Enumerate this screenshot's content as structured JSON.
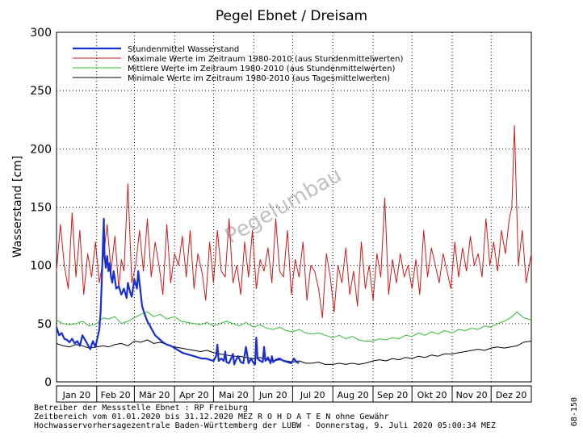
{
  "chart_data": {
    "type": "line",
    "title": "Pegel Ebnet / Dreisam",
    "ylabel": "Wasserstand [cm]",
    "ylim": [
      0,
      300
    ],
    "yticks": [
      "0",
      "50",
      "100",
      "150",
      "200",
      "250",
      "300"
    ],
    "x_range_days": [
      0,
      366
    ],
    "months": [
      {
        "label": "Jan 20",
        "start": 0,
        "end": 31
      },
      {
        "label": "Feb 20",
        "start": 31,
        "end": 60
      },
      {
        "label": "Mär 20",
        "start": 60,
        "end": 91
      },
      {
        "label": "Apr 20",
        "start": 91,
        "end": 121
      },
      {
        "label": "Mai 20",
        "start": 121,
        "end": 152
      },
      {
        "label": "Jun 20",
        "start": 152,
        "end": 182
      },
      {
        "label": "Jul 20",
        "start": 182,
        "end": 213
      },
      {
        "label": "Aug 20",
        "start": 213,
        "end": 244
      },
      {
        "label": "Sep 20",
        "start": 244,
        "end": 274
      },
      {
        "label": "Okt 20",
        "start": 274,
        "end": 305
      },
      {
        "label": "Nov 20",
        "start": 305,
        "end": 335
      },
      {
        "label": "Dez 20",
        "start": 335,
        "end": 366
      }
    ],
    "grid": true,
    "legend_position": "top-left",
    "series": [
      {
        "name": "Stundenmittel Wasserstand",
        "color": "#1a2fd0",
        "x": [
          0,
          2,
          4,
          6,
          8,
          10,
          12,
          14,
          16,
          18,
          20,
          22,
          24,
          26,
          28,
          30,
          32,
          33,
          34,
          35,
          36,
          36.5,
          37,
          38,
          39,
          40,
          41,
          42,
          43,
          44,
          45,
          46,
          48,
          50,
          52,
          54,
          55,
          56,
          57,
          58,
          60,
          62,
          63,
          64,
          65,
          66,
          68,
          70,
          72,
          74,
          76,
          78,
          80,
          82,
          85,
          88,
          91,
          94,
          97,
          100,
          103,
          106,
          109,
          112,
          115,
          118,
          121,
          123,
          124,
          125,
          127,
          129,
          130,
          131,
          133,
          136,
          137,
          138,
          140,
          142,
          144,
          146,
          148,
          150,
          152,
          153,
          154,
          155,
          157,
          159,
          160,
          161,
          163,
          165,
          166,
          167,
          169,
          172,
          175,
          178,
          181,
          183,
          185,
          187
        ],
        "y": [
          47,
          40,
          42,
          37,
          36,
          34,
          37,
          33,
          35,
          31,
          40,
          36,
          32,
          28,
          35,
          30,
          40,
          45,
          60,
          90,
          125,
          140,
          110,
          98,
          108,
          95,
          102,
          90,
          85,
          95,
          88,
          80,
          82,
          75,
          80,
          72,
          85,
          80,
          76,
          73,
          88,
          80,
          95,
          85,
          75,
          65,
          58,
          52,
          48,
          44,
          40,
          38,
          36,
          34,
          32,
          31,
          29,
          27,
          25,
          24,
          23,
          22,
          21,
          20,
          20,
          19,
          18,
          22,
          32,
          18,
          20,
          18,
          26,
          17,
          16,
          24,
          15,
          18,
          22,
          17,
          16,
          30,
          16,
          20,
          16,
          15,
          38,
          20,
          18,
          17,
          30,
          18,
          21,
          16,
          22,
          17,
          19,
          20,
          18,
          17,
          16,
          20,
          17,
          16
        ]
      },
      {
        "name": "Maximale Werte im Zeitraum 1980-2010 (aus Stundenmittelwerten)",
        "color": "#cc1a1a",
        "x": [
          0,
          3,
          6,
          9,
          12,
          15,
          18,
          21,
          24,
          27,
          30,
          33,
          36,
          39,
          42,
          45,
          48,
          50,
          52,
          55,
          58,
          61,
          64,
          67,
          70,
          73,
          76,
          79,
          82,
          85,
          88,
          91,
          94,
          97,
          100,
          103,
          106,
          109,
          112,
          115,
          118,
          121,
          124,
          127,
          130,
          133,
          136,
          139,
          142,
          145,
          148,
          151,
          154,
          157,
          160,
          163,
          166,
          169,
          172,
          175,
          178,
          181,
          184,
          187,
          190,
          193,
          196,
          199,
          202,
          205,
          208,
          211,
          214,
          217,
          220,
          223,
          226,
          229,
          232,
          235,
          238,
          241,
          244,
          247,
          250,
          253,
          256,
          259,
          262,
          265,
          268,
          271,
          274,
          277,
          280,
          283,
          286,
          289,
          292,
          295,
          298,
          301,
          304,
          307,
          310,
          313,
          316,
          319,
          322,
          325,
          328,
          331,
          334,
          337,
          340,
          343,
          346,
          349,
          351,
          353,
          356,
          359,
          362,
          366
        ],
        "y": [
          95,
          135,
          100,
          80,
          145,
          90,
          130,
          75,
          110,
          90,
          120,
          85,
          105,
          135,
          95,
          125,
          80,
          105,
          95,
          170,
          85,
          100,
          130,
          95,
          140,
          90,
          120,
          100,
          75,
          135,
          85,
          110,
          100,
          125,
          90,
          130,
          80,
          110,
          95,
          70,
          120,
          85,
          130,
          95,
          90,
          140,
          85,
          100,
          75,
          120,
          90,
          130,
          80,
          105,
          95,
          115,
          85,
          140,
          95,
          90,
          130,
          75,
          105,
          90,
          120,
          70,
          100,
          95,
          80,
          55,
          110,
          90,
          60,
          100,
          85,
          115,
          75,
          95,
          65,
          120,
          80,
          100,
          70,
          110,
          90,
          158,
          75,
          105,
          85,
          110,
          90,
          100,
          80,
          105,
          75,
          130,
          90,
          115,
          100,
          85,
          110,
          95,
          80,
          120,
          90,
          115,
          95,
          125,
          100,
          110,
          90,
          140,
          100,
          120,
          95,
          130,
          110,
          140,
          150,
          220,
          100,
          130,
          85,
          110
        ]
      },
      {
        "name": "Mittlere Werte im Zeitraum 1980-2010 (aus Stundenmittelwerten)",
        "color": "#33bb33",
        "x": [
          0,
          5,
          10,
          15,
          20,
          25,
          31,
          36,
          40,
          45,
          50,
          55,
          60,
          65,
          70,
          75,
          80,
          85,
          91,
          96,
          101,
          106,
          111,
          116,
          121,
          126,
          131,
          136,
          141,
          146,
          152,
          157,
          162,
          167,
          172,
          177,
          182,
          187,
          192,
          197,
          202,
          207,
          213,
          218,
          223,
          228,
          233,
          238,
          244,
          249,
          254,
          259,
          264,
          269,
          274,
          279,
          284,
          289,
          294,
          299,
          305,
          310,
          315,
          320,
          325,
          330,
          335,
          340,
          345,
          350,
          355,
          360,
          366
        ],
        "y": [
          53,
          50,
          49,
          50,
          52,
          48,
          50,
          55,
          54,
          56,
          50,
          52,
          55,
          58,
          60,
          56,
          58,
          54,
          56,
          52,
          51,
          50,
          49,
          51,
          48,
          50,
          52,
          50,
          48,
          51,
          47,
          49,
          46,
          45,
          47,
          44,
          43,
          45,
          42,
          41,
          42,
          40,
          38,
          40,
          37,
          39,
          36,
          35,
          35,
          37,
          36,
          38,
          37,
          40,
          39,
          42,
          40,
          43,
          41,
          44,
          42,
          45,
          44,
          46,
          45,
          48,
          47,
          50,
          52,
          55,
          60,
          55,
          53
        ]
      },
      {
        "name": "Minimale Werte im Zeitraum 1980-2010 (aus Tagesmittelwerten)",
        "color": "#000000",
        "x": [
          0,
          5,
          10,
          15,
          20,
          25,
          31,
          36,
          40,
          45,
          50,
          55,
          60,
          65,
          70,
          75,
          80,
          85,
          91,
          96,
          101,
          106,
          111,
          116,
          121,
          126,
          131,
          136,
          141,
          146,
          152,
          157,
          162,
          167,
          172,
          177,
          182,
          187,
          192,
          197,
          202,
          207,
          213,
          218,
          223,
          228,
          233,
          238,
          244,
          249,
          254,
          259,
          264,
          269,
          274,
          279,
          284,
          289,
          294,
          299,
          305,
          310,
          315,
          320,
          325,
          330,
          335,
          340,
          345,
          350,
          355,
          360,
          366
        ],
        "y": [
          33,
          31,
          30,
          32,
          31,
          29,
          30,
          31,
          30,
          32,
          33,
          31,
          35,
          34,
          36,
          33,
          34,
          32,
          30,
          29,
          28,
          27,
          26,
          27,
          25,
          24,
          23,
          22,
          22,
          21,
          20,
          21,
          19,
          18,
          19,
          18,
          17,
          18,
          16,
          16,
          17,
          15,
          15,
          16,
          15,
          16,
          15,
          16,
          18,
          19,
          18,
          20,
          19,
          21,
          20,
          22,
          21,
          23,
          22,
          24,
          24,
          25,
          26,
          27,
          28,
          27,
          29,
          30,
          29,
          30,
          31,
          34,
          35
        ]
      }
    ]
  },
  "footer": {
    "line1": "Betreiber der Messstelle Ebnet : RP Freiburg",
    "line2": "Zeitbereich vom 01.01.2020 bis 31.12.2020   MEZ   R O H D A T E N ohne Gewähr",
    "line3": "Hochwasservorhersagezentrale Baden-Württemberg der LUBW - Donnerstag, 9. Juli 2020 05:00:34 MEZ",
    "side_id": "68-150"
  },
  "watermark": "Pegelumbau"
}
